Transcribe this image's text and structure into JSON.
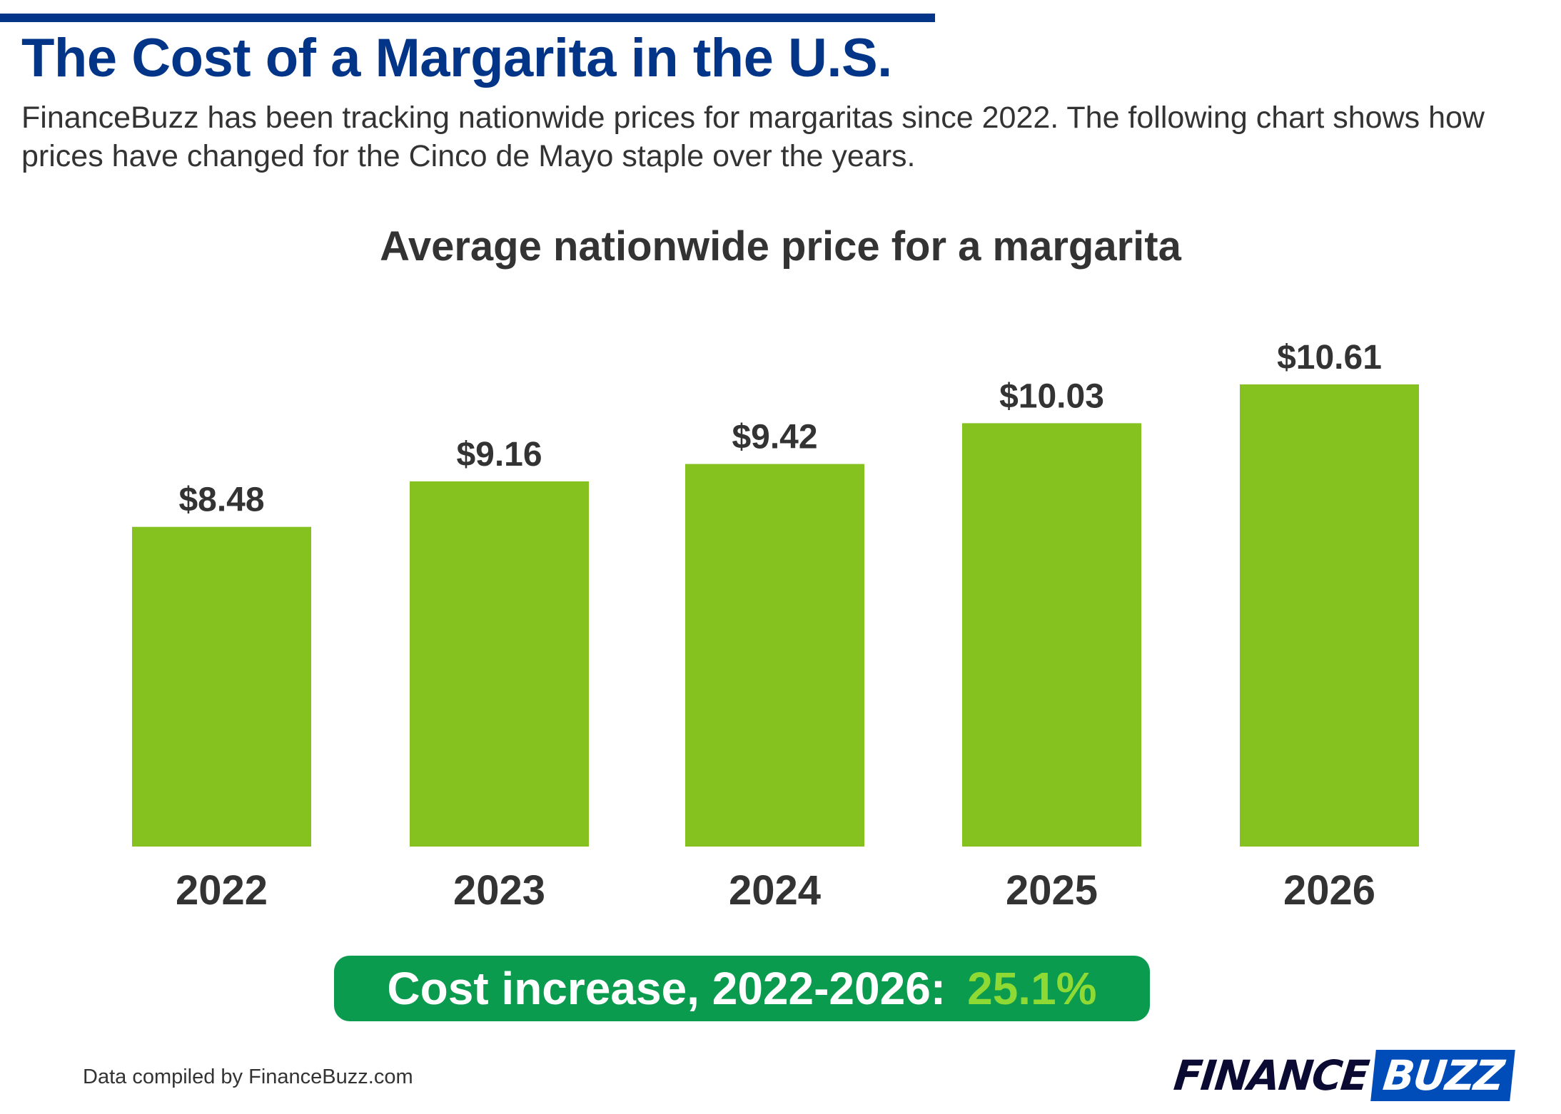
{
  "header": {
    "title": "The Cost of a Margarita in the U.S.",
    "subtitle": "FinanceBuzz has been tracking nationwide prices for margaritas since 2022. The following chart shows how prices have changed for the Cinco de Mayo staple over the years."
  },
  "chart_data": {
    "type": "bar",
    "title": "Average nationwide price for a margarita",
    "categories": [
      "2022",
      "2023",
      "2024",
      "2025",
      "2026"
    ],
    "values": [
      8.48,
      9.16,
      9.42,
      10.03,
      10.61
    ],
    "data_labels": [
      "$8.48",
      "$9.16",
      "$9.42",
      "$10.03",
      "$10.61"
    ],
    "xlabel": "",
    "ylabel": "",
    "ylim": [
      3.7,
      10.61
    ],
    "grid": false,
    "bar_color": "#85c21f"
  },
  "callout": {
    "label": "Cost increase, 2022-2026:",
    "value": "25.1%",
    "background": "#0a9b4f",
    "value_color": "#8fd934"
  },
  "footer": {
    "source": "Data compiled by FinanceBuzz.com",
    "logo": {
      "part1": "FINANCE",
      "part2": "BUZZ"
    }
  },
  "colors": {
    "title": "#023588",
    "accent_bar": "#023588"
  }
}
